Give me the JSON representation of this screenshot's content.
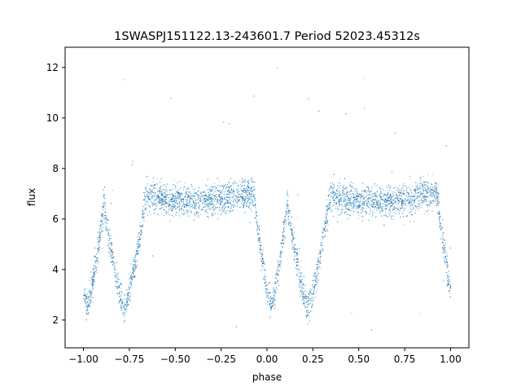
{
  "chart_data": {
    "type": "scatter",
    "title": "1SWASPJ151122.13-243601.7 Period 52023.45312s",
    "xlabel": "phase",
    "ylabel": "flux",
    "xlim": [
      -1.1,
      1.1
    ],
    "ylim": [
      0.9,
      12.8
    ],
    "x_ticks": [
      -1.0,
      -0.75,
      -0.5,
      -0.25,
      0.0,
      0.25,
      0.5,
      0.75,
      1.0
    ],
    "x_tick_labels": [
      "−1.00",
      "−0.75",
      "−0.50",
      "−0.25",
      "0.00",
      "0.25",
      "0.50",
      "0.75",
      "1.00"
    ],
    "y_ticks": [
      2,
      4,
      6,
      8,
      10,
      12
    ],
    "y_tick_labels": [
      "2",
      "4",
      "6",
      "8",
      "10",
      "12"
    ],
    "grid": false,
    "marker_color": "#1f77b4",
    "series": [
      {
        "description_of_shape": "folded light curve, eclipsing binary",
        "baseline_flux": 6.95,
        "baseline_scatter": 0.3,
        "primary_eclipse_phases": [
          -0.78,
          0.22
        ],
        "primary_eclipse_min_flux": 2.5,
        "secondary_eclipse_phases": [
          -0.98,
          0.02
        ],
        "secondary_eclipse_min_flux": 2.6,
        "eclipse_half_width": 0.12,
        "point_count": 9000,
        "outlier_range": [
          1.5,
          12.3
        ]
      }
    ]
  }
}
